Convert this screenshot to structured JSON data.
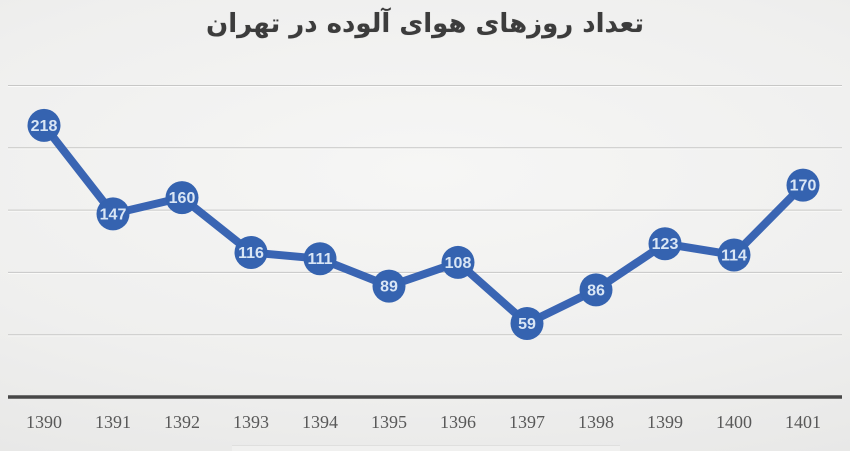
{
  "title": "تعداد روزهای هوای آلوده در تهران",
  "colors": {
    "line": "#3a65b3",
    "marker_fill": "#3563b0",
    "marker_label_text": "#d9e6f5",
    "axis_line": "#474747",
    "gridline": "#c7c7c6",
    "gridline_highlight": "#fbfbfa",
    "tick_text": "#595959",
    "title_text": "#3c3c3c"
  },
  "chart_data": {
    "type": "line",
    "title": "تعداد روزهای هوای آلوده در تهران",
    "categories": [
      "1390",
      "1391",
      "1392",
      "1393",
      "1394",
      "1395",
      "1396",
      "1397",
      "1398",
      "1399",
      "1400",
      "1401"
    ],
    "values": [
      218,
      147,
      160,
      116,
      111,
      89,
      108,
      59,
      86,
      123,
      114,
      170
    ],
    "series": [
      {
        "name": "تعداد روزهای هوای آلوده",
        "values": [
          218,
          147,
          160,
          116,
          111,
          89,
          108,
          59,
          86,
          123,
          114,
          170
        ]
      }
    ],
    "xlabel": "",
    "ylabel": "",
    "ylim": [
      0,
      250
    ],
    "grid": true,
    "grid_step": 50,
    "y_axis_labels_visible": false,
    "data_labels": true,
    "legend_position": "none"
  }
}
